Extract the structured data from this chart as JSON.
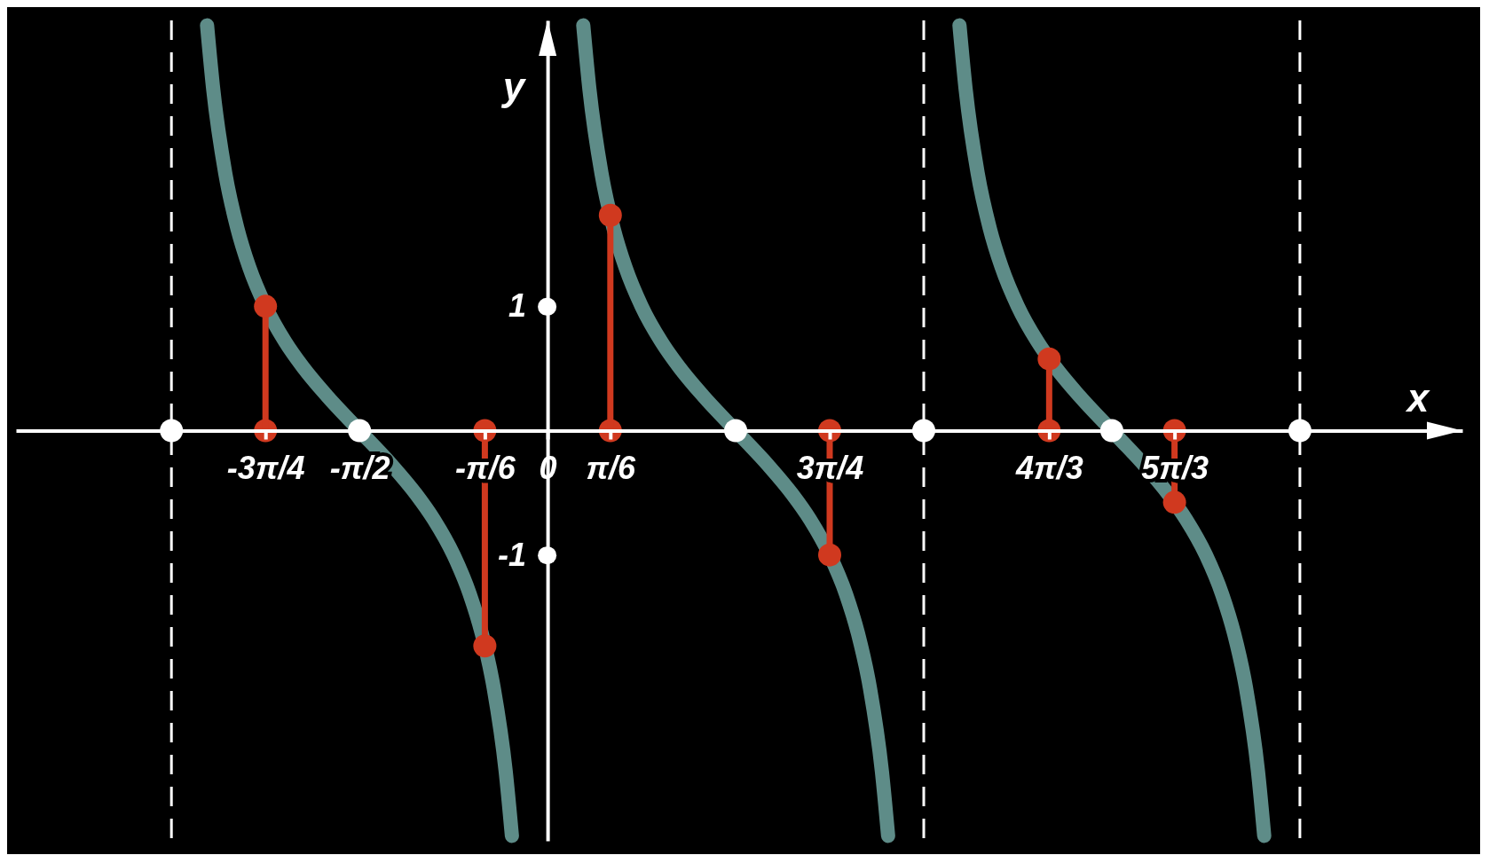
{
  "chart_data": {
    "type": "line",
    "xlabel": "x",
    "ylabel": "y",
    "xlim": [
      -4.44,
      7.64
    ],
    "ylim": [
      -3.3,
      3.3
    ],
    "xticks": [
      {
        "value": -2.356,
        "label": "-3π/4"
      },
      {
        "value": -1.571,
        "label": "-π/2"
      },
      {
        "value": -0.524,
        "label": "-π/6"
      },
      {
        "value": 0,
        "label": "0"
      },
      {
        "value": 0.524,
        "label": "π/6"
      },
      {
        "value": 2.356,
        "label": "3π/4"
      },
      {
        "value": 4.189,
        "label": "4π/3"
      },
      {
        "value": 5.236,
        "label": "5π/3"
      }
    ],
    "yticks": [
      1,
      -1
    ],
    "ref_lines": [
      {
        "axis": "x",
        "value": -3.1416,
        "line_style": "dashed",
        "color": "#ffffff"
      },
      {
        "axis": "x",
        "value": 3.1416,
        "line_style": "dashed",
        "color": "#ffffff"
      },
      {
        "axis": "x",
        "value": 6.283,
        "line_style": "dashed",
        "color": "#ffffff"
      }
    ],
    "series": [
      {
        "color": "#5e8c88",
        "x": [
          -2.844,
          -2.792,
          -2.692,
          -2.592,
          -2.492,
          -2.356,
          -2.192,
          -2.042,
          -1.842,
          -1.571,
          -1.3,
          -1.1,
          -0.95,
          -0.785,
          -0.65,
          -0.55,
          -0.45,
          -0.35,
          -0.298
        ],
        "values": [
          3.26,
          2.74,
          2.07,
          1.631,
          1.315,
          1,
          0.715,
          0.509,
          0.278,
          0,
          -0.278,
          -0.509,
          -0.715,
          -1,
          -1.315,
          -1.631,
          -2.07,
          -2.74,
          -3.26
        ]
      },
      {
        "color": "#5e8c88",
        "x": [
          0.298,
          0.35,
          0.45,
          0.55,
          0.65,
          0.785,
          0.95,
          1.1,
          1.3,
          1.571,
          1.842,
          2.042,
          2.192,
          2.356,
          2.492,
          2.592,
          2.692,
          2.792,
          2.844
        ],
        "values": [
          3.26,
          2.74,
          2.07,
          1.631,
          1.315,
          1,
          0.715,
          0.509,
          0.278,
          0,
          -0.278,
          -0.509,
          -0.715,
          -1,
          -1.315,
          -1.631,
          -2.07,
          -2.74,
          -3.26
        ]
      },
      {
        "color": "#5e8c88",
        "x": [
          3.44,
          3.492,
          3.592,
          3.692,
          3.792,
          3.927,
          4.092,
          4.242,
          4.442,
          4.712,
          4.983,
          5.183,
          5.333,
          5.498,
          5.633,
          5.733,
          5.833,
          5.933,
          5.985
        ],
        "values": [
          3.26,
          2.74,
          2.07,
          1.631,
          1.315,
          1,
          0.715,
          0.509,
          0.278,
          0,
          -0.278,
          -0.509,
          -0.715,
          -1,
          -1.315,
          -1.631,
          -2.07,
          -2.74,
          -3.26
        ]
      },
      {
        "type": "lollipop",
        "color": "#d0391f",
        "x": [
          -2.356,
          -0.524,
          0.524,
          2.356,
          4.189,
          5.236
        ],
        "values": [
          1,
          -1.732,
          1.732,
          -1,
          0.577,
          -0.577
        ]
      },
      {
        "type": "scatter",
        "color": "#d0391f",
        "x": [
          -2.356,
          -0.524,
          0.524,
          2.356,
          4.189,
          5.236
        ],
        "values": [
          0,
          0,
          0,
          0,
          0,
          0
        ]
      },
      {
        "type": "scatter",
        "color": "#ffffff",
        "x": [
          -3.1416,
          -1.571,
          1.571,
          3.1416,
          4.712,
          6.283
        ],
        "values": [
          0,
          0,
          0,
          0,
          0,
          0
        ]
      }
    ]
  }
}
